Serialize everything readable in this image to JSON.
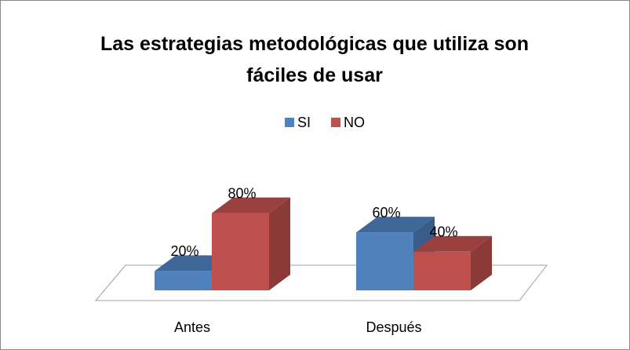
{
  "chart_data": {
    "type": "bar3d",
    "title": "Las estrategias metodológicas que utiliza son fáciles de usar",
    "categories": [
      "Antes",
      "Después"
    ],
    "series": [
      {
        "name": "SI",
        "color": "#4f81bd",
        "values": [
          20,
          60
        ],
        "value_labels": [
          "20%",
          "60%"
        ]
      },
      {
        "name": "NO",
        "color": "#c0504d",
        "values": [
          80,
          40
        ],
        "value_labels": [
          "80%",
          "40%"
        ]
      }
    ],
    "legend": "top"
  }
}
